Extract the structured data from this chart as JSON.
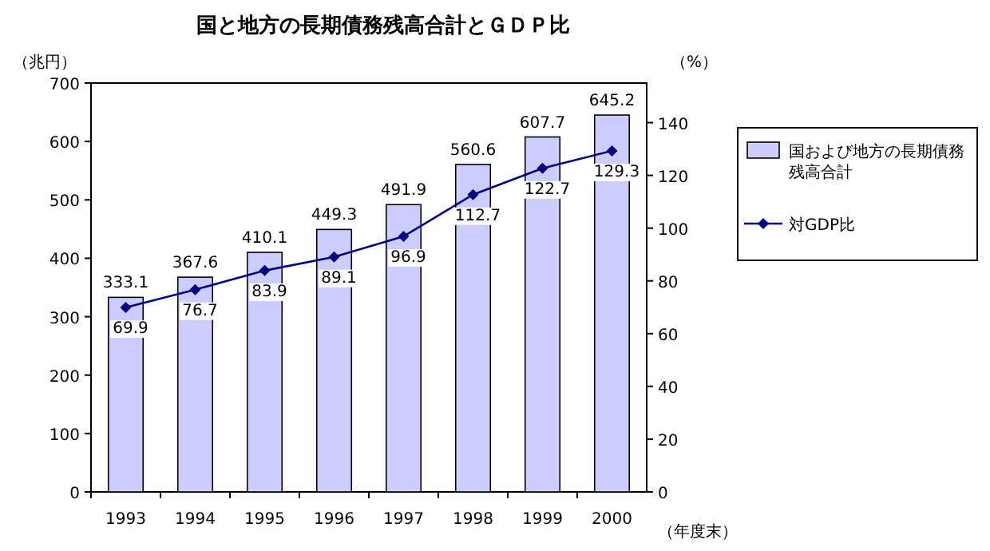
{
  "chart_data": {
    "type": "bar",
    "title": "国と地方の長期債務残高合計とＧＤＰ比",
    "ylabel": "（兆円）",
    "y2label": "（%）",
    "xlabel": "（年度末）",
    "categories": [
      "1993",
      "1994",
      "1995",
      "1996",
      "1997",
      "1998",
      "1999",
      "2000"
    ],
    "series": [
      {
        "name": "国および地方の長期債務残高合計",
        "color": "#ccccff",
        "values": [
          333.1,
          367.6,
          410.1,
          449.3,
          491.9,
          560.6,
          607.7,
          645.2
        ]
      },
      {
        "name": "対GDP比",
        "type": "line",
        "axis": "y2",
        "color": "#000080",
        "values": [
          69.9,
          76.7,
          83.9,
          89.1,
          96.9,
          112.7,
          122.7,
          129.3
        ]
      }
    ],
    "ylim": [
      0,
      700
    ],
    "yticks": [
      0,
      100,
      200,
      300,
      400,
      500,
      600,
      700
    ],
    "y2lim": [
      0,
      155
    ],
    "y2ticks": [
      0,
      20,
      40,
      60,
      80,
      100,
      120,
      140
    ],
    "data_labels": true,
    "legend": "right",
    "marker": "diamond",
    "line_style": "solid",
    "grid": false
  }
}
